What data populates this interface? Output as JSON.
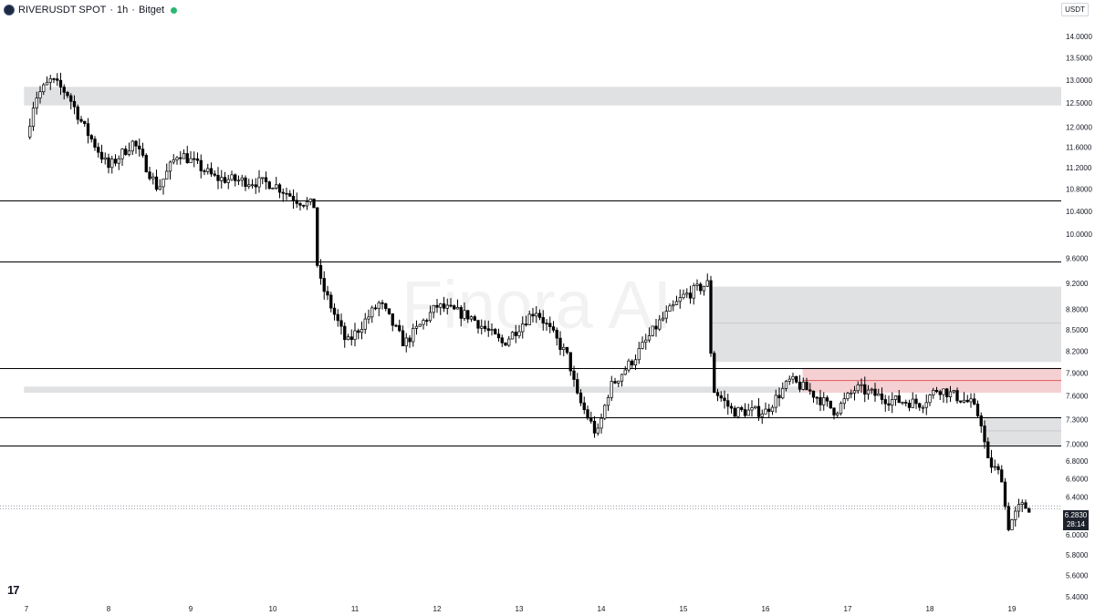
{
  "header": {
    "symbol": "RIVERUSDT SPOT",
    "timeframe": "1h",
    "exchange": "Bitget",
    "separator": "·"
  },
  "currency": "USDT",
  "watermark": "Finora AI",
  "current_price": {
    "value": "6.2830",
    "countdown": "28:14"
  },
  "colors": {
    "up": "#ffffff",
    "down": "#000000",
    "wick": "#000000",
    "zone_gray": "#e0e1e3",
    "zone_red": "#f5d0d3",
    "zone_red_line": "#e05a5a",
    "level_line": "#000000",
    "axis_text": "#131722",
    "live": "#2bb673"
  },
  "chart_data": {
    "type": "candlestick",
    "x_ticks": [
      "7",
      "8",
      "9",
      "10",
      "11",
      "12",
      "13",
      "14",
      "15",
      "16",
      "17",
      "18",
      "19"
    ],
    "y_ticks": [
      "14.0000",
      "13.5000",
      "13.0000",
      "12.5000",
      "12.0000",
      "11.6000",
      "11.2000",
      "10.8000",
      "10.4000",
      "10.0000",
      "9.6000",
      "9.2000",
      "8.8000",
      "8.5000",
      "8.2000",
      "7.9000",
      "7.6000",
      "7.3000",
      "7.0000",
      "6.8000",
      "6.6000",
      "6.4000",
      "6.0000",
      "5.8000",
      "5.6000",
      "5.4000"
    ],
    "y_scale": "log",
    "ylim": [
      5.4,
      14.0
    ],
    "levels": [
      10.6,
      9.55,
      7.97,
      7.33,
      6.98
    ],
    "zones": [
      {
        "color": "gray",
        "from_day": 6.97,
        "to_day": 19.6,
        "low": 12.45,
        "high": 12.85
      },
      {
        "color": "gray",
        "from_day": 6.97,
        "to_day": 19.6,
        "low": 7.64,
        "high": 7.72
      },
      {
        "color": "gray",
        "from_day": 15.35,
        "to_day": 19.6,
        "low": 8.05,
        "high": 9.15,
        "midline": 8.6
      },
      {
        "color": "red",
        "from_day": 16.45,
        "to_day": 19.6,
        "low": 7.64,
        "high": 7.97,
        "midline": 7.8
      },
      {
        "color": "gray",
        "from_day": 18.65,
        "to_day": 19.6,
        "low": 6.98,
        "high": 7.33,
        "midline": 7.16
      }
    ],
    "path": [
      [
        7.0,
        11.8
      ],
      [
        7.1,
        12.6
      ],
      [
        7.3,
        13.0
      ],
      [
        7.5,
        12.7
      ],
      [
        7.7,
        12.0
      ],
      [
        8.0,
        11.2
      ],
      [
        8.3,
        11.7
      ],
      [
        8.6,
        10.8
      ],
      [
        8.85,
        11.5
      ],
      [
        9.3,
        11.0
      ],
      [
        10.0,
        10.9
      ],
      [
        10.3,
        10.6
      ],
      [
        10.5,
        10.5
      ],
      [
        10.55,
        9.3
      ],
      [
        10.9,
        8.3
      ],
      [
        11.3,
        8.9
      ],
      [
        11.6,
        8.3
      ],
      [
        12.0,
        8.85
      ],
      [
        12.4,
        8.7
      ],
      [
        12.8,
        8.3
      ],
      [
        13.2,
        8.8
      ],
      [
        13.6,
        8.1
      ],
      [
        13.7,
        7.6
      ],
      [
        13.95,
        7.1
      ],
      [
        14.1,
        7.7
      ],
      [
        14.4,
        8.1
      ],
      [
        14.7,
        8.6
      ],
      [
        15.0,
        9.0
      ],
      [
        15.3,
        9.2
      ],
      [
        15.35,
        7.7
      ],
      [
        15.6,
        7.4
      ],
      [
        16.0,
        7.4
      ],
      [
        16.3,
        7.8
      ],
      [
        16.55,
        7.65
      ],
      [
        16.85,
        7.4
      ],
      [
        17.1,
        7.7
      ],
      [
        17.5,
        7.55
      ],
      [
        17.9,
        7.5
      ],
      [
        18.1,
        7.7
      ],
      [
        18.5,
        7.5
      ],
      [
        18.62,
        7.3
      ],
      [
        18.7,
        6.8
      ],
      [
        18.9,
        6.6
      ],
      [
        18.93,
        6.05
      ],
      [
        19.1,
        6.3
      ],
      [
        19.22,
        6.283
      ]
    ]
  }
}
